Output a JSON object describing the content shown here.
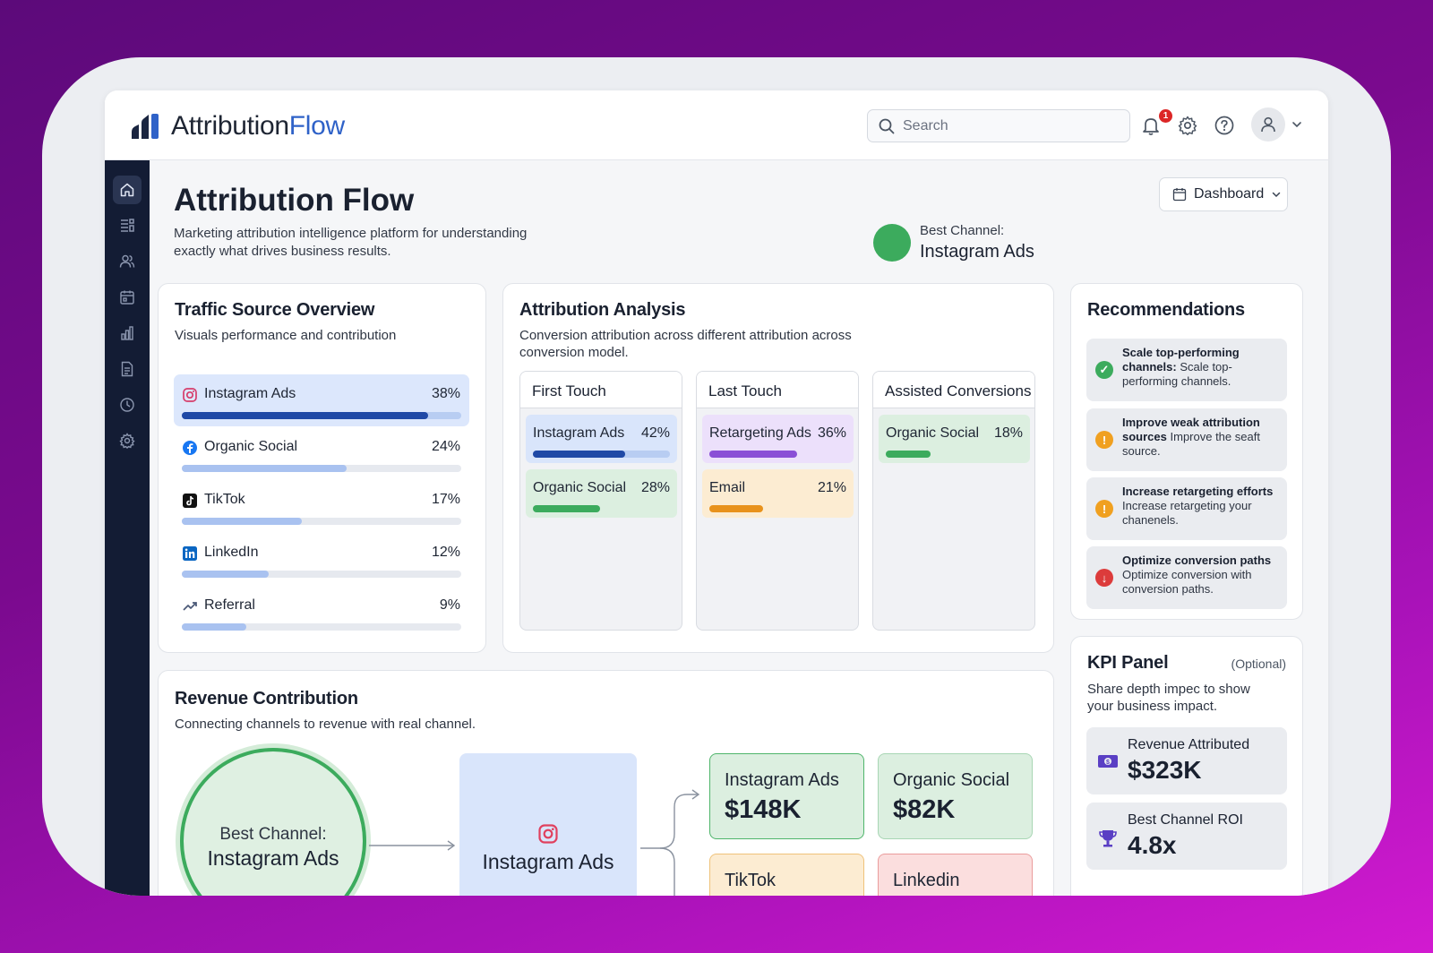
{
  "app": {
    "logo_main": "Attribution",
    "logo_accent": "Flow"
  },
  "topbar": {
    "search_placeholder": "Search",
    "notification_count": "1"
  },
  "header": {
    "title": "Attribution Flow",
    "subtitle": "Marketing attribution intelligence platform for understanding exactly what drives business results.",
    "dashboard_label": "Dashboard",
    "best_channel_label": "Best Channel:",
    "best_channel_value": "Instagram Ads"
  },
  "traffic": {
    "title": "Traffic Source Overview",
    "subtitle": "Visuals performance and contribution",
    "rows": [
      {
        "name": "Instagram Ads",
        "pct": "38%",
        "value": 0.88,
        "icon": "instagram-icon"
      },
      {
        "name": "Organic Social",
        "pct": "24%",
        "value": 0.59,
        "icon": "facebook-icon"
      },
      {
        "name": "TikTok",
        "pct": "17%",
        "value": 0.43,
        "icon": "tiktok-icon"
      },
      {
        "name": "LinkedIn",
        "pct": "12%",
        "value": 0.31,
        "icon": "linkedin-icon"
      },
      {
        "name": "Referral",
        "pct": "9%",
        "value": 0.23,
        "icon": "trend-icon"
      }
    ]
  },
  "analysis": {
    "title": "Attribution Analysis",
    "subtitle": "Conversion attribution across different attribution across conversion model.",
    "columns": [
      {
        "label": "First Touch",
        "items": [
          {
            "name": "Instagram Ads",
            "pct": "42%",
            "value": 0.67,
            "bg": "#d9e5fb",
            "bar": "#1f49a6",
            "track": "#b8cdf2"
          },
          {
            "name": "Organic Social",
            "pct": "28%",
            "value": 0.49,
            "bg": "#dcefe0",
            "bar": "#3cab5d",
            "track": "#dcefe0"
          }
        ]
      },
      {
        "label": "Last Touch",
        "items": [
          {
            "name": "Retargeting Ads",
            "pct": "36%",
            "value": 0.64,
            "bg": "#ece0fb",
            "bar": "#8a4fd6",
            "track": "#ece0fb"
          },
          {
            "name": "Email",
            "pct": "21%",
            "value": 0.39,
            "bg": "#fcecd2",
            "bar": "#e8921c",
            "track": "#fcecd2"
          }
        ]
      },
      {
        "label": "Assisted Conversions",
        "items": [
          {
            "name": "Organic Social",
            "pct": "18%",
            "value": 0.33,
            "bg": "#dcefe0",
            "bar": "#3cab5d",
            "track": "#dcefe0"
          }
        ]
      }
    ]
  },
  "recommendations": {
    "title": "Recommendations",
    "items": [
      {
        "title": "Scale top-performing channels:",
        "body": "Scale top-performing channels.",
        "icon": "check-icon",
        "color": "#3cab5d",
        "glyph": "✓"
      },
      {
        "title": "Improve weak attribution sources",
        "body": "Improve the seaft source.",
        "icon": "warning-icon",
        "color": "#f0a020",
        "glyph": "!"
      },
      {
        "title": "Increase retargeting efforts",
        "body": "Increase retargeting your chanenels.",
        "icon": "warning-icon",
        "color": "#f0a020",
        "glyph": "!"
      },
      {
        "title": "Optimize conversion paths",
        "body": "Optimize conversion with conversion paths.",
        "icon": "arrow-down-icon",
        "color": "#dc3b3b",
        "glyph": "↓"
      }
    ]
  },
  "kpi": {
    "title": "KPI Panel",
    "optional": "(Optional)",
    "subtitle": "Share depth impec to show your business impact.",
    "items": [
      {
        "label": "Revenue Attributed",
        "value": "$323K",
        "icon": "money-icon"
      },
      {
        "label": "Best Channel ROI",
        "value": "4.8x",
        "icon": "trophy-icon"
      }
    ]
  },
  "revenue": {
    "title": "Revenue Contribution",
    "subtitle": "Connecting channels to revenue with real channel.",
    "best_label": "Best Channel:",
    "best_value": "Instagram Ads",
    "flow_channel": "Instagram Ads",
    "cards": [
      {
        "name": "Instagram Ads",
        "value": "$148K",
        "bg": "#dcefe0",
        "border": "#4fb56b"
      },
      {
        "name": "Organic Social",
        "value": "$82K",
        "bg": "#dcefe0",
        "border": "#a8d6b4"
      },
      {
        "name": "TikTok",
        "value": "",
        "bg": "#fcecd2",
        "border": "#efc27a"
      },
      {
        "name": "Linkedin",
        "value": "",
        "bg": "#fbdede",
        "border": "#ea9c9c"
      }
    ]
  }
}
